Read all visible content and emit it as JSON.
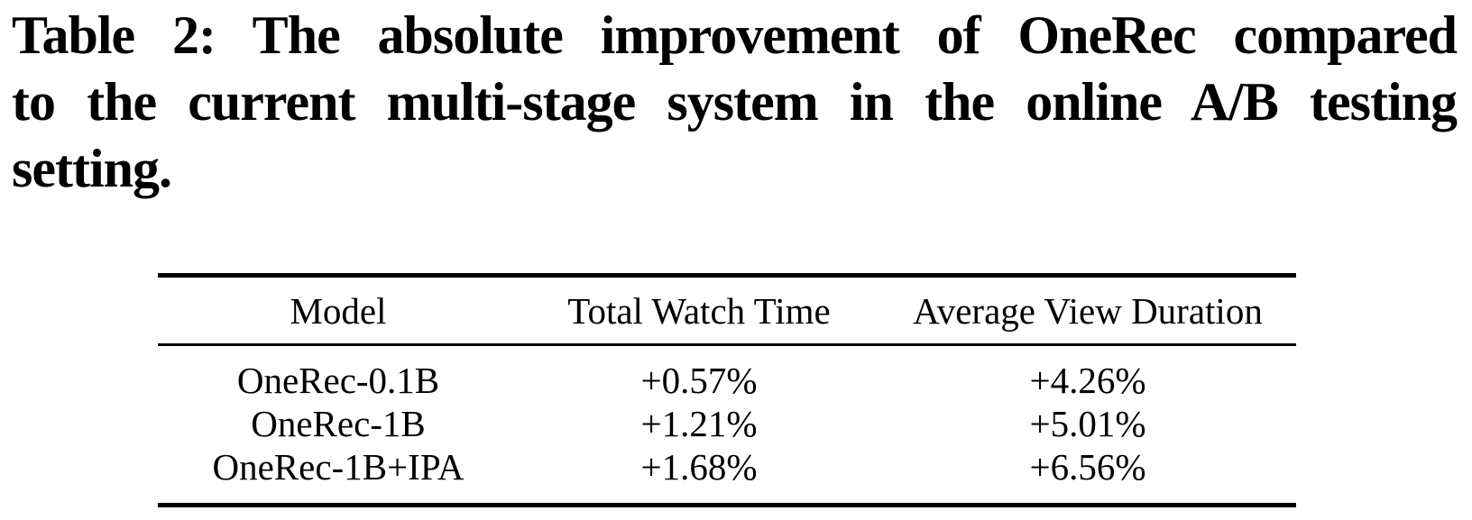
{
  "page": {
    "background": "#ffffff",
    "text_color": "#000000"
  },
  "caption": {
    "label": "Table 2:",
    "full_text": "Table 2: The absolute improvement of OneRec compared to the current multi-stage system in the online A/B testing setting.",
    "lines": [
      "Table 2: The absolute improvement of OneRec compared",
      "to the current multi-stage system in the online A/B testing",
      "setting."
    ]
  },
  "table": {
    "columns": [
      "Model",
      "Total Watch Time",
      "Average View Duration"
    ],
    "rows": [
      {
        "model": "OneRec-0.1B",
        "total_watch_time": "+0.57%",
        "average_view_duration": "+4.26%"
      },
      {
        "model": "OneRec-1B",
        "total_watch_time": "+1.21%",
        "average_view_duration": "+5.01%"
      },
      {
        "model": "OneRec-1B+IPA",
        "total_watch_time": "+1.68%",
        "average_view_duration": "+6.56%"
      }
    ]
  }
}
